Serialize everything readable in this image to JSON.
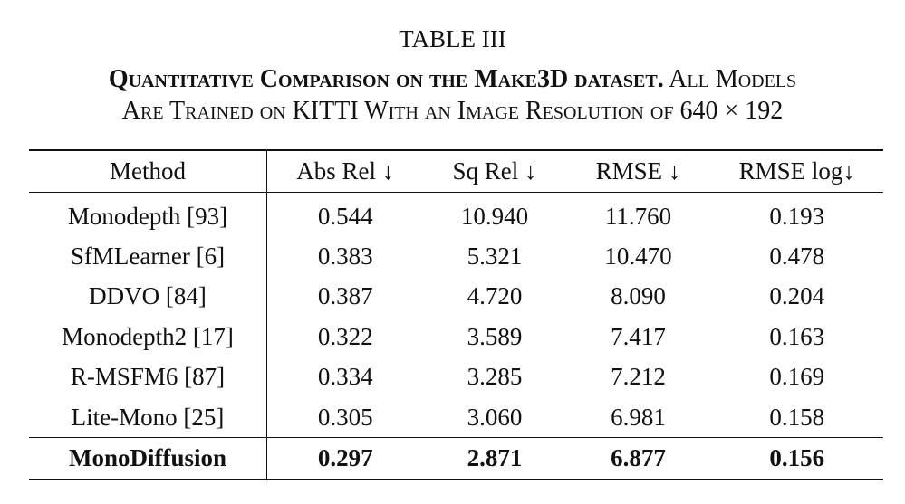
{
  "label": "TABLE III",
  "caption": {
    "line1_bold": "Quantitative Comparison on the Make3D dataset.",
    "line1_rest": "All Models",
    "line2": "Are Trained on KITTI With an Image Resolution of 640 × 192"
  },
  "table": {
    "header": [
      "Method",
      "Abs Rel ↓",
      "Sq Rel ↓",
      "RMSE ↓",
      "RMSE log↓"
    ],
    "rows": [
      [
        "Monodepth [93]",
        "0.544",
        "10.940",
        "11.760",
        "0.193"
      ],
      [
        "SfMLearner [6]",
        "0.383",
        "5.321",
        "10.470",
        "0.478"
      ],
      [
        "DDVO [84]",
        "0.387",
        "4.720",
        "8.090",
        "0.204"
      ],
      [
        "Monodepth2 [17]",
        "0.322",
        "3.589",
        "7.417",
        "0.163"
      ],
      [
        "R-MSFM6 [87]",
        "0.334",
        "3.285",
        "7.212",
        "0.169"
      ],
      [
        "Lite-Mono [25]",
        "0.305",
        "3.060",
        "6.981",
        "0.158"
      ]
    ],
    "final_row": [
      "MonoDiffusion",
      "0.297",
      "2.871",
      "6.877",
      "0.156"
    ]
  }
}
